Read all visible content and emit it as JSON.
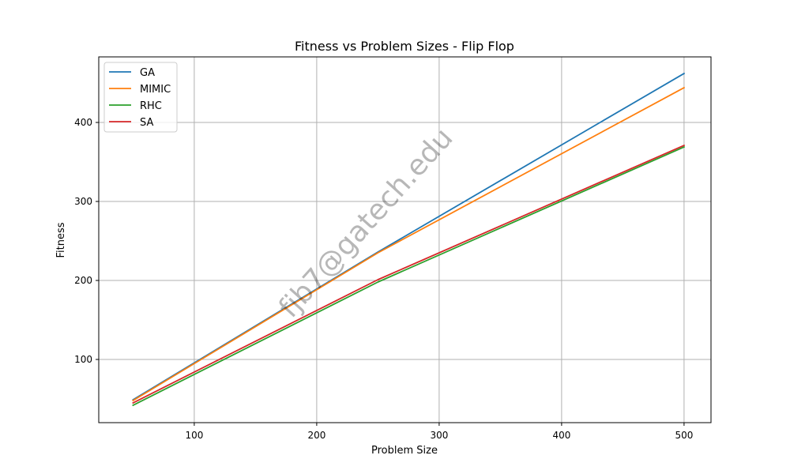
{
  "chart_data": {
    "type": "line",
    "title": "Fitness vs Problem Sizes - Flip Flop",
    "xlabel": "Problem Size",
    "ylabel": "Fitness",
    "x": [
      50,
      250,
      500
    ],
    "xlim": [
      22,
      522
    ],
    "ylim": [
      20,
      483
    ],
    "xticks": [
      100,
      200,
      300,
      400,
      500
    ],
    "yticks": [
      100,
      200,
      300,
      400
    ],
    "grid": true,
    "legend_position": "top-left",
    "series": [
      {
        "name": "GA",
        "color": "#1f77b4",
        "values": [
          49,
          236,
          462
        ]
      },
      {
        "name": "MIMIC",
        "color": "#ff7f0e",
        "values": [
          48,
          235,
          444
        ]
      },
      {
        "name": "RHC",
        "color": "#2ca02c",
        "values": [
          42,
          198,
          369
        ]
      },
      {
        "name": "SA",
        "color": "#d62728",
        "values": [
          45,
          201,
          371
        ]
      }
    ],
    "watermark": "fjb7@gatech.edu"
  }
}
